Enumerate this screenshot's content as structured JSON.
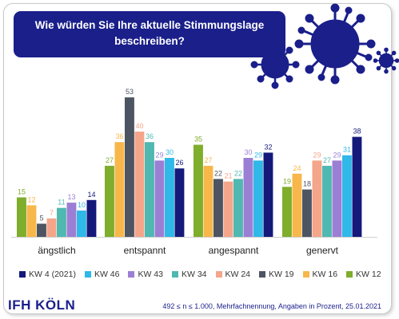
{
  "title": "Wie würden Sie Ihre aktuelle Stimmungslage beschreiben?",
  "logo_text": "IFH KÖLN",
  "footnote": "492 ≤ n ≤ 1.000, Mehrfachnennung, Angaben in Prozent, 25.01.2021",
  "colors": {
    "title_bg": "#1a1f8a",
    "virus": "#1a1f8a"
  },
  "chart_data": {
    "type": "bar",
    "categories": [
      "ängstlich",
      "entspannt",
      "angespannt",
      "genervt"
    ],
    "series": [
      {
        "name": "KW 12",
        "color": "#7fad2c",
        "values": [
          15,
          27,
          35,
          19
        ]
      },
      {
        "name": "KW 16",
        "color": "#f8b74a",
        "values": [
          12,
          36,
          27,
          24
        ]
      },
      {
        "name": "KW 19",
        "color": "#4d5563",
        "values": [
          5,
          53,
          22,
          18
        ]
      },
      {
        "name": "KW 24",
        "color": "#f4a58a",
        "values": [
          7,
          40,
          21,
          29
        ]
      },
      {
        "name": "KW 34",
        "color": "#4fb8b0",
        "values": [
          11,
          36,
          22,
          27
        ]
      },
      {
        "name": "KW 43",
        "color": "#9b7fd4",
        "values": [
          13,
          29,
          30,
          29
        ]
      },
      {
        "name": "KW 46",
        "color": "#2fb8e8",
        "values": [
          10,
          30,
          29,
          31
        ]
      },
      {
        "name": "KW 4 (2021)",
        "color": "#14197a",
        "values": [
          14,
          26,
          32,
          38
        ]
      }
    ],
    "legend_order": [
      "KW 4 (2021)",
      "KW 46",
      "KW 43",
      "KW 34",
      "KW 24",
      "KW 19",
      "KW 16",
      "KW 12"
    ],
    "legend_position": "bottom",
    "ylim": [
      0,
      60
    ],
    "grid": false,
    "xlabel": "",
    "ylabel": ""
  }
}
